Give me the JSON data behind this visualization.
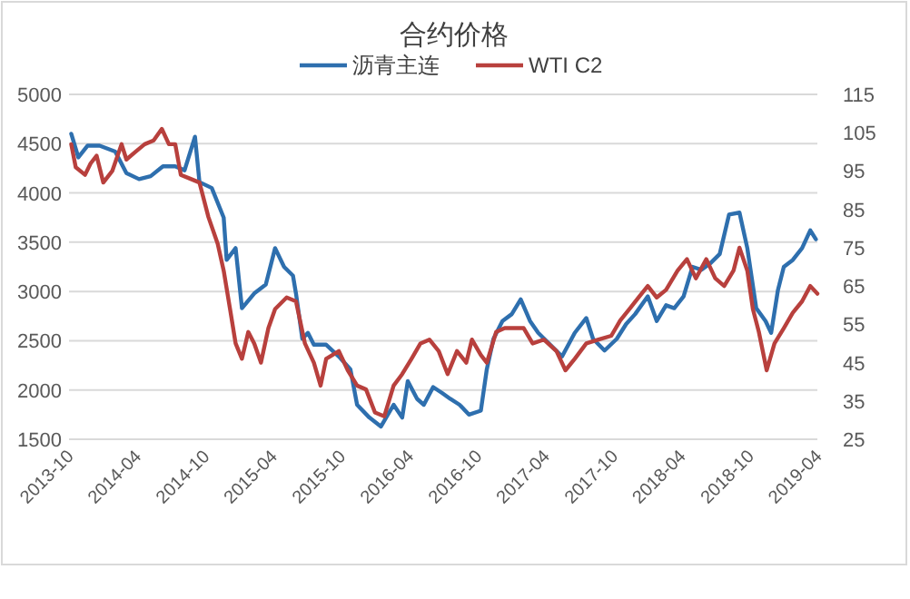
{
  "chart_data": {
    "type": "line",
    "title": "合约价格",
    "legend": "top",
    "grid": "y",
    "marker": "none",
    "line_style": "solid",
    "xlim": [
      "2013-10",
      "2019-04"
    ],
    "xticks": [
      "2013-10",
      "2014-04",
      "2014-10",
      "2015-04",
      "2015-10",
      "2016-04",
      "2016-10",
      "2017-04",
      "2017-10",
      "2018-04",
      "2018-10",
      "2019-04"
    ],
    "ylim": [
      1500,
      5000
    ],
    "yticks": [
      1500,
      2000,
      2500,
      3000,
      3500,
      4000,
      4500,
      5000
    ],
    "y2lim": [
      25,
      115
    ],
    "y2ticks": [
      25,
      35,
      45,
      55,
      65,
      75,
      85,
      95,
      105,
      115
    ],
    "series": [
      {
        "name": "沥青主连",
        "color": "#2e6fae",
        "x": [
          "2013-10-07",
          "2013-10-26",
          "2013-11-20",
          "2013-12-22",
          "2014-02-02",
          "2014-03-04",
          "2014-04-07",
          "2014-05-08",
          "2014-06-10",
          "2014-07-13",
          "2014-08-07",
          "2014-09-04",
          "2014-09-16",
          "2014-10-19",
          "2014-11-20",
          "2014-11-28",
          "2014-12-22",
          "2015-01-08",
          "2015-02-10",
          "2015-03-13",
          "2015-04-07",
          "2015-05-01",
          "2015-05-25",
          "2015-06-02",
          "2015-06-19",
          "2015-07-04",
          "2015-07-20",
          "2015-08-22",
          "2015-09-25",
          "2015-10-26",
          "2015-11-13",
          "2015-12-16",
          "2016-01-16",
          "2016-02-19",
          "2016-03-13",
          "2016-03-28",
          "2016-04-22",
          "2016-05-10",
          "2016-06-04",
          "2016-06-28",
          "2016-07-20",
          "2016-08-14",
          "2016-09-08",
          "2016-10-10",
          "2016-10-26",
          "2016-11-13",
          "2016-12-07",
          "2017-01-01",
          "2017-01-25",
          "2017-02-19",
          "2017-03-13",
          "2017-04-14",
          "2017-05-16",
          "2017-06-19",
          "2017-07-20",
          "2017-08-07",
          "2017-09-07",
          "2017-10-10",
          "2017-11-04",
          "2017-11-28",
          "2018-01-01",
          "2018-01-25",
          "2018-02-19",
          "2018-03-13",
          "2018-04-07",
          "2018-05-01",
          "2018-05-25",
          "2018-06-19",
          "2018-07-13",
          "2018-08-07",
          "2018-09-04",
          "2018-09-25",
          "2018-10-19",
          "2018-11-13",
          "2018-11-28",
          "2018-12-16",
          "2019-01-01",
          "2019-01-25",
          "2019-02-19",
          "2019-03-13",
          "2019-03-28"
        ],
        "values": [
          4600,
          4360,
          4480,
          4480,
          4420,
          4200,
          4140,
          4170,
          4270,
          4270,
          4230,
          4570,
          4110,
          4050,
          3750,
          3320,
          3440,
          2830,
          2980,
          3070,
          3440,
          3250,
          3160,
          2980,
          2520,
          2580,
          2460,
          2460,
          2340,
          2210,
          1850,
          1720,
          1630,
          1850,
          1720,
          2090,
          1910,
          1850,
          2030,
          1970,
          1910,
          1850,
          1750,
          1790,
          2210,
          2520,
          2700,
          2770,
          2920,
          2700,
          2580,
          2460,
          2340,
          2580,
          2730,
          2520,
          2400,
          2520,
          2670,
          2770,
          2950,
          2700,
          2860,
          2830,
          2950,
          3250,
          3220,
          3290,
          3380,
          3780,
          3800,
          3440,
          2830,
          2700,
          2580,
          3010,
          3250,
          3320,
          3440,
          3620,
          3530
        ]
      },
      {
        "name": "WTI C2",
        "color": "#b8403d",
        "axis": "y2",
        "x": [
          "2013-10-07",
          "2013-10-19",
          "2013-11-13",
          "2013-11-28",
          "2013-12-14",
          "2014-01-01",
          "2014-01-25",
          "2014-02-19",
          "2014-03-04",
          "2014-03-28",
          "2014-04-22",
          "2014-05-16",
          "2014-06-07",
          "2014-06-26",
          "2014-07-13",
          "2014-07-28",
          "2014-08-22",
          "2014-09-16",
          "2014-10-10",
          "2014-11-04",
          "2014-11-20",
          "2014-12-07",
          "2014-12-22",
          "2015-01-08",
          "2015-01-25",
          "2015-02-10",
          "2015-02-28",
          "2015-03-20",
          "2015-04-07",
          "2015-05-08",
          "2015-06-02",
          "2015-06-26",
          "2015-07-20",
          "2015-08-07",
          "2015-08-22",
          "2015-09-25",
          "2015-10-19",
          "2015-11-13",
          "2015-12-07",
          "2015-12-31",
          "2016-01-25",
          "2016-02-19",
          "2016-03-13",
          "2016-04-07",
          "2016-05-01",
          "2016-05-25",
          "2016-06-19",
          "2016-07-13",
          "2016-08-07",
          "2016-09-01",
          "2016-09-16",
          "2016-10-10",
          "2016-10-26",
          "2016-11-20",
          "2016-12-13",
          "2017-01-08",
          "2017-02-02",
          "2017-02-26",
          "2017-03-28",
          "2017-05-01",
          "2017-05-25",
          "2017-06-19",
          "2017-07-20",
          "2017-08-22",
          "2017-09-25",
          "2017-10-19",
          "2017-11-13",
          "2017-12-07",
          "2018-01-01",
          "2018-01-25",
          "2018-02-19",
          "2018-03-22",
          "2018-04-16",
          "2018-05-10",
          "2018-06-07",
          "2018-07-01",
          "2018-07-25",
          "2018-08-19",
          "2018-09-04",
          "2018-09-25",
          "2018-10-10",
          "2018-10-26",
          "2018-11-16",
          "2018-12-07",
          "2019-01-01",
          "2019-01-25",
          "2019-02-19",
          "2019-03-13",
          "2019-04-01"
        ],
        "values": [
          102,
          96,
          94,
          97,
          99,
          92,
          95,
          102,
          98,
          100,
          102,
          103,
          106,
          102,
          102,
          94,
          93,
          92,
          83,
          76,
          69,
          59,
          50,
          46,
          53,
          50,
          45,
          54,
          59,
          62,
          61,
          50,
          45,
          39,
          46,
          48,
          43,
          39,
          38,
          32,
          31,
          39,
          42,
          46,
          50,
          51,
          48,
          42,
          48,
          45,
          51,
          47,
          45,
          53,
          54,
          54,
          54,
          50,
          51,
          48,
          43,
          46,
          50,
          51,
          52,
          56,
          59,
          62,
          65,
          62,
          64,
          69,
          72,
          67,
          72,
          67,
          65,
          69,
          75,
          69,
          59,
          53,
          43,
          50,
          54,
          58,
          61,
          65,
          63
        ]
      }
    ]
  }
}
